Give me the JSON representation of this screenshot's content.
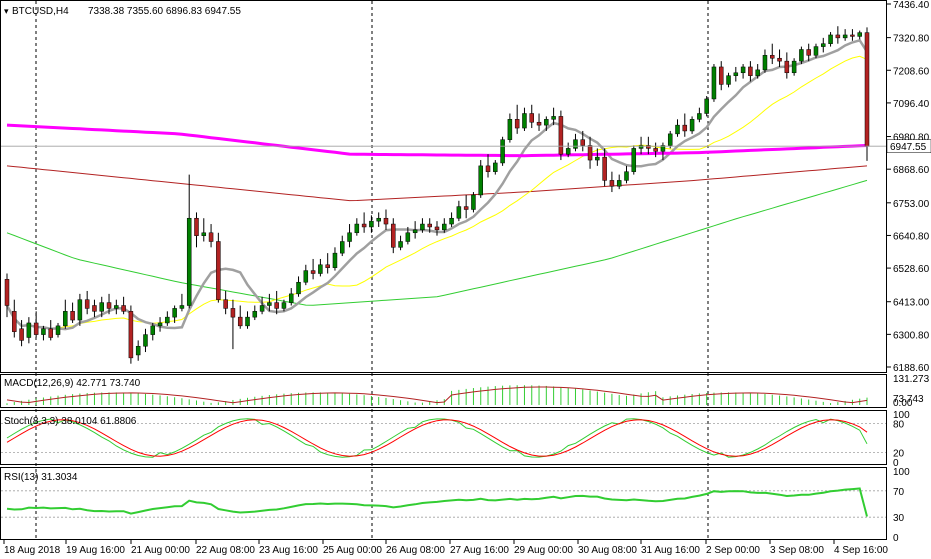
{
  "header": {
    "symbol": "BTCUSD,H4",
    "ohlc": "7338.38 7355.60 6896.83 6947.55"
  },
  "colors": {
    "bull": "#008000",
    "bear": "#b22222",
    "ma_magenta": "#ff00ff",
    "ma_gray": "#a0a0a0",
    "ma_yellow": "#ffff00",
    "ma_red": "#b22222",
    "ma_green": "#32cd32",
    "macd_hist": "#32cd32",
    "macd_signal": "#b22222",
    "stoch_main": "#32cd32",
    "stoch_signal": "#ff0000",
    "rsi": "#32cd32",
    "price_tag_bg": "#ffffff",
    "grid": "#000000"
  },
  "chart_data": [
    {
      "type": "candlestick",
      "title": "BTCUSD,H4",
      "ylim": [
        6188.6,
        7436.4
      ],
      "y_ticks": [
        "7436.40",
        "7320.80",
        "7208.60",
        "7096.40",
        "6980.80",
        "6868.60",
        "6753.00",
        "6640.80",
        "6528.60",
        "6413.00",
        "6300.80",
        "6188.60"
      ],
      "current_price": "6947.55",
      "x_ticks": [
        "18 Aug 2018",
        "19 Aug 16:00",
        "21 Aug 00:00",
        "22 Aug 08:00",
        "23 Aug 16:00",
        "25 Aug 00:00",
        "26 Aug 08:00",
        "27 Aug 16:00",
        "29 Aug 00:00",
        "30 Aug 08:00",
        "31 Aug 16:00",
        "2 Sep 00:00",
        "3 Sep 08:00",
        "4 Sep 16:00"
      ],
      "candles": [
        [
          6490,
          6510,
          6400,
          6360
        ],
        [
          6380,
          6420,
          6310,
          6290
        ],
        [
          6320,
          6350,
          6280,
          6260
        ],
        [
          6290,
          6360,
          6340,
          6270
        ],
        [
          6340,
          6380,
          6300,
          6290
        ],
        [
          6300,
          6330,
          6320,
          6280
        ],
        [
          6320,
          6350,
          6290,
          6280
        ],
        [
          6300,
          6340,
          6330,
          6290
        ],
        [
          6330,
          6420,
          6380,
          6320
        ],
        [
          6380,
          6410,
          6350,
          6340
        ],
        [
          6350,
          6440,
          6420,
          6330
        ],
        [
          6420,
          6450,
          6390,
          6370
        ],
        [
          6400,
          6420,
          6380,
          6360
        ],
        [
          6380,
          6430,
          6410,
          6360
        ],
        [
          6410,
          6440,
          6390,
          6370
        ],
        [
          6390,
          6420,
          6400,
          6370
        ],
        [
          6400,
          6430,
          6380,
          6370
        ],
        [
          6380,
          6400,
          6220,
          6200
        ],
        [
          6230,
          6280,
          6260,
          6210
        ],
        [
          6260,
          6320,
          6300,
          6240
        ],
        [
          6300,
          6340,
          6330,
          6280
        ],
        [
          6330,
          6360,
          6340,
          6310
        ],
        [
          6340,
          6380,
          6360,
          6330
        ],
        [
          6360,
          6400,
          6390,
          6340
        ],
        [
          6390,
          6440,
          6400,
          6380
        ],
        [
          6400,
          6850,
          6700,
          6390
        ],
        [
          6700,
          6720,
          6640,
          6600
        ],
        [
          6640,
          6700,
          6650,
          6620
        ],
        [
          6650,
          6680,
          6620,
          6600
        ],
        [
          6620,
          6650,
          6420,
          6410
        ],
        [
          6420,
          6450,
          6390,
          6370
        ],
        [
          6390,
          6420,
          6360,
          6250
        ],
        [
          6360,
          6400,
          6330,
          6320
        ],
        [
          6330,
          6380,
          6360,
          6320
        ],
        [
          6360,
          6400,
          6380,
          6350
        ],
        [
          6380,
          6430,
          6400,
          6370
        ],
        [
          6400,
          6440,
          6410,
          6380
        ],
        [
          6410,
          6450,
          6390,
          6370
        ],
        [
          6390,
          6420,
          6410,
          6380
        ],
        [
          6410,
          6460,
          6440,
          6400
        ],
        [
          6440,
          6500,
          6480,
          6430
        ],
        [
          6480,
          6540,
          6520,
          6470
        ],
        [
          6520,
          6560,
          6510,
          6490
        ],
        [
          6510,
          6560,
          6540,
          6500
        ],
        [
          6540,
          6580,
          6530,
          6510
        ],
        [
          6530,
          6600,
          6580,
          6520
        ],
        [
          6580,
          6640,
          6620,
          6570
        ],
        [
          6620,
          6680,
          6650,
          6600
        ],
        [
          6650,
          6700,
          6680,
          6640
        ],
        [
          6680,
          6720,
          6670,
          6650
        ],
        [
          6670,
          6710,
          6690,
          6650
        ],
        [
          6690,
          6720,
          6700,
          6670
        ],
        [
          6700,
          6730,
          6680,
          6660
        ],
        [
          6680,
          6700,
          6600,
          6580
        ],
        [
          6600,
          6640,
          6620,
          6590
        ],
        [
          6620,
          6670,
          6650,
          6610
        ],
        [
          6650,
          6690,
          6660,
          6630
        ],
        [
          6660,
          6700,
          6680,
          6650
        ],
        [
          6680,
          6700,
          6670,
          6650
        ],
        [
          6670,
          6690,
          6660,
          6640
        ],
        [
          6660,
          6700,
          6680,
          6650
        ],
        [
          6680,
          6720,
          6700,
          6670
        ],
        [
          6700,
          6760,
          6740,
          6690
        ],
        [
          6740,
          6780,
          6730,
          6700
        ],
        [
          6730,
          6790,
          6780,
          6720
        ],
        [
          6780,
          6900,
          6880,
          6770
        ],
        [
          6880,
          6920,
          6860,
          6840
        ],
        [
          6860,
          6900,
          6890,
          6850
        ],
        [
          6890,
          6980,
          6970,
          6880
        ],
        [
          6970,
          7060,
          7040,
          6960
        ],
        [
          7040,
          7090,
          7010,
          6990
        ],
        [
          7010,
          7080,
          7060,
          7000
        ],
        [
          7060,
          7090,
          7030,
          7010
        ],
        [
          7030,
          7060,
          7020,
          7000
        ],
        [
          7020,
          7050,
          7040,
          7000
        ],
        [
          7040,
          7080,
          7050,
          7020
        ],
        [
          7050,
          7070,
          6920,
          6900
        ],
        [
          6920,
          6960,
          6940,
          6910
        ],
        [
          6940,
          6990,
          6970,
          6930
        ],
        [
          6970,
          7000,
          6950,
          6930
        ],
        [
          6950,
          6980,
          6900,
          6870
        ],
        [
          6900,
          6940,
          6910,
          6880
        ],
        [
          6910,
          6940,
          6830,
          6810
        ],
        [
          6830,
          6860,
          6810,
          6790
        ],
        [
          6810,
          6850,
          6830,
          6800
        ],
        [
          6830,
          6880,
          6860,
          6820
        ],
        [
          6860,
          6950,
          6940,
          6850
        ],
        [
          6940,
          6980,
          6950,
          6920
        ],
        [
          6950,
          6980,
          6940,
          6920
        ],
        [
          6940,
          6960,
          6930,
          6910
        ],
        [
          6930,
          6960,
          6950,
          6900
        ],
        [
          6950,
          7000,
          6990,
          6940
        ],
        [
          6990,
          7040,
          7020,
          6980
        ],
        [
          7020,
          7060,
          7000,
          6980
        ],
        [
          7000,
          7050,
          7040,
          6990
        ],
        [
          7040,
          7080,
          7060,
          7030
        ],
        [
          7060,
          7120,
          7110,
          7050
        ],
        [
          7110,
          7230,
          7220,
          7100
        ],
        [
          7220,
          7240,
          7160,
          7140
        ],
        [
          7160,
          7200,
          7190,
          7150
        ],
        [
          7190,
          7220,
          7200,
          7170
        ],
        [
          7200,
          7230,
          7220,
          7180
        ],
        [
          7220,
          7240,
          7190,
          7170
        ],
        [
          7190,
          7230,
          7210,
          7180
        ],
        [
          7210,
          7280,
          7260,
          7200
        ],
        [
          7260,
          7300,
          7250,
          7230
        ],
        [
          7250,
          7280,
          7240,
          7220
        ],
        [
          7240,
          7270,
          7200,
          7180
        ],
        [
          7200,
          7250,
          7240,
          7190
        ],
        [
          7240,
          7290,
          7280,
          7230
        ],
        [
          7280,
          7300,
          7260,
          7240
        ],
        [
          7260,
          7300,
          7290,
          7250
        ],
        [
          7290,
          7320,
          7300,
          7270
        ],
        [
          7300,
          7340,
          7330,
          7290
        ],
        [
          7330,
          7360,
          7320,
          7300
        ],
        [
          7320,
          7350,
          7330,
          7310
        ],
        [
          7330,
          7350,
          7325,
          7310
        ],
        [
          7325,
          7345,
          7338,
          7315
        ],
        [
          7338,
          7356,
          6947,
          6897
        ]
      ]
    },
    {
      "type": "bar",
      "title": "MACD(12,26,9) 42.771 73.740",
      "y_ticks": [
        "131.273",
        "73.743",
        "0.00"
      ],
      "ylim": [
        0,
        150
      ]
    },
    {
      "type": "line",
      "title": "Stoch(8,3,3) 38.0104 61.8806",
      "y_ticks": [
        "100",
        "80",
        "20",
        "0"
      ],
      "ylim": [
        0,
        100
      ]
    },
    {
      "type": "line",
      "title": "RSI(13) 31.3034",
      "y_ticks": [
        "100",
        "70",
        "30",
        "0"
      ],
      "ylim": [
        0,
        100
      ]
    }
  ]
}
